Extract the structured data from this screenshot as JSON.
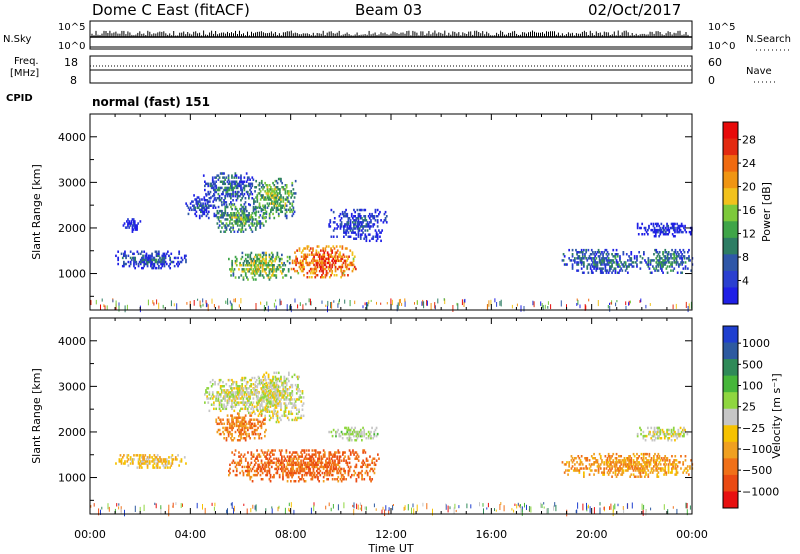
{
  "header": {
    "site": "Dome C East (fitACF)",
    "beam": "Beam 03",
    "date": "02/Oct/2017"
  },
  "summary_panels": {
    "nsky": {
      "label": "N.Sky",
      "right_label": "N.Search",
      "left_ticks": [
        "10^5",
        "10^0"
      ],
      "right_ticks": [
        "10^5",
        "10^0"
      ]
    },
    "freq": {
      "label_line1": "Freq.",
      "label_line2": "[MHz]",
      "right_label": "Nave",
      "left_ticks": [
        "18",
        "8"
      ],
      "right_ticks": [
        "60",
        "0"
      ]
    },
    "cpid": {
      "label": "CPID",
      "value": "normal (fast) 151"
    }
  },
  "chart_data": [
    {
      "type": "heatmap",
      "panel": "power",
      "ylabel": "Slant Range [km]",
      "xlabel": "",
      "ylim": [
        200,
        4500
      ],
      "yticks": [
        1000,
        2000,
        3000,
        4000
      ],
      "xticks": [
        "00:00",
        "04:00",
        "08:00",
        "12:00",
        "16:00",
        "20:00",
        "00:00"
      ],
      "colorbar": {
        "label": "Power [dB]",
        "ticks": [
          "4",
          "8",
          "12",
          "16",
          "20",
          "24",
          "28"
        ],
        "colors": [
          "#1f1fe6",
          "#2a3fd0",
          "#2f57a8",
          "#2e7d64",
          "#3fa548",
          "#7dc93a",
          "#f2c21c",
          "#f09512",
          "#f06a10",
          "#e32a10",
          "#e80a0a"
        ]
      },
      "regions": [
        {
          "t": [
            1.3,
            2.0
          ],
          "r": [
            1900,
            2200
          ],
          "level": 0.12
        },
        {
          "t": [
            1.0,
            3.8
          ],
          "r": [
            1100,
            1500
          ],
          "level": 0.25
        },
        {
          "t": [
            3.8,
            5.0
          ],
          "r": [
            2200,
            2700
          ],
          "level": 0.2
        },
        {
          "t": [
            4.5,
            6.5
          ],
          "r": [
            2500,
            3200
          ],
          "level": 0.3
        },
        {
          "t": [
            5.0,
            7.0
          ],
          "r": [
            1900,
            2500
          ],
          "level": 0.45
        },
        {
          "t": [
            6.5,
            8.2
          ],
          "r": [
            2200,
            3100
          ],
          "level": 0.5
        },
        {
          "t": [
            5.5,
            8.0
          ],
          "r": [
            850,
            1450
          ],
          "level": 0.55
        },
        {
          "t": [
            8.0,
            10.6
          ],
          "r": [
            900,
            1600
          ],
          "level": 0.85
        },
        {
          "t": [
            9.5,
            11.8
          ],
          "r": [
            1700,
            2400
          ],
          "level": 0.2
        },
        {
          "t": [
            18.8,
            22.0
          ],
          "r": [
            1000,
            1500
          ],
          "level": 0.3
        },
        {
          "t": [
            21.8,
            24.0
          ],
          "r": [
            1800,
            2100
          ],
          "level": 0.12
        },
        {
          "t": [
            22.0,
            24.0
          ],
          "r": [
            1000,
            1500
          ],
          "level": 0.35
        }
      ]
    },
    {
      "type": "heatmap",
      "panel": "velocity",
      "ylabel": "Slant Range [km]",
      "xlabel": "Time UT",
      "ylim": [
        200,
        4500
      ],
      "yticks": [
        1000,
        2000,
        3000,
        4000
      ],
      "xticks": [
        "00:00",
        "04:00",
        "08:00",
        "12:00",
        "16:00",
        "20:00",
        "00:00"
      ],
      "colorbar": {
        "label": "Velocity [m s⁻¹]",
        "ticks": [
          "1000",
          "500",
          "100",
          "25",
          "−25",
          "−100",
          "−500",
          "−1000"
        ],
        "colors": [
          "#1f3fcf",
          "#2d5aa0",
          "#2f8a58",
          "#46b63a",
          "#8fd640",
          "#c6c6c6",
          "#f6c200",
          "#f0a020",
          "#f07018",
          "#ea4a12",
          "#e81010"
        ]
      },
      "regions": [
        {
          "t": [
            1.0,
            3.8
          ],
          "r": [
            1200,
            1500
          ],
          "level": 0.6
        },
        {
          "t": [
            4.5,
            7.5
          ],
          "r": [
            2400,
            3200
          ],
          "level": 0.5
        },
        {
          "t": [
            6.5,
            8.5
          ],
          "r": [
            2200,
            3300
          ],
          "level": 0.5
        },
        {
          "t": [
            5.0,
            7.0
          ],
          "r": [
            1800,
            2400
          ],
          "level": 0.75
        },
        {
          "t": [
            5.5,
            11.5
          ],
          "r": [
            900,
            1600
          ],
          "level": 0.8
        },
        {
          "t": [
            9.5,
            11.5
          ],
          "r": [
            1800,
            2100
          ],
          "level": 0.45
        },
        {
          "t": [
            18.8,
            24.0
          ],
          "r": [
            1000,
            1500
          ],
          "level": 0.7
        },
        {
          "t": [
            21.8,
            24.0
          ],
          "r": [
            1800,
            2100
          ],
          "level": 0.5
        }
      ]
    }
  ]
}
